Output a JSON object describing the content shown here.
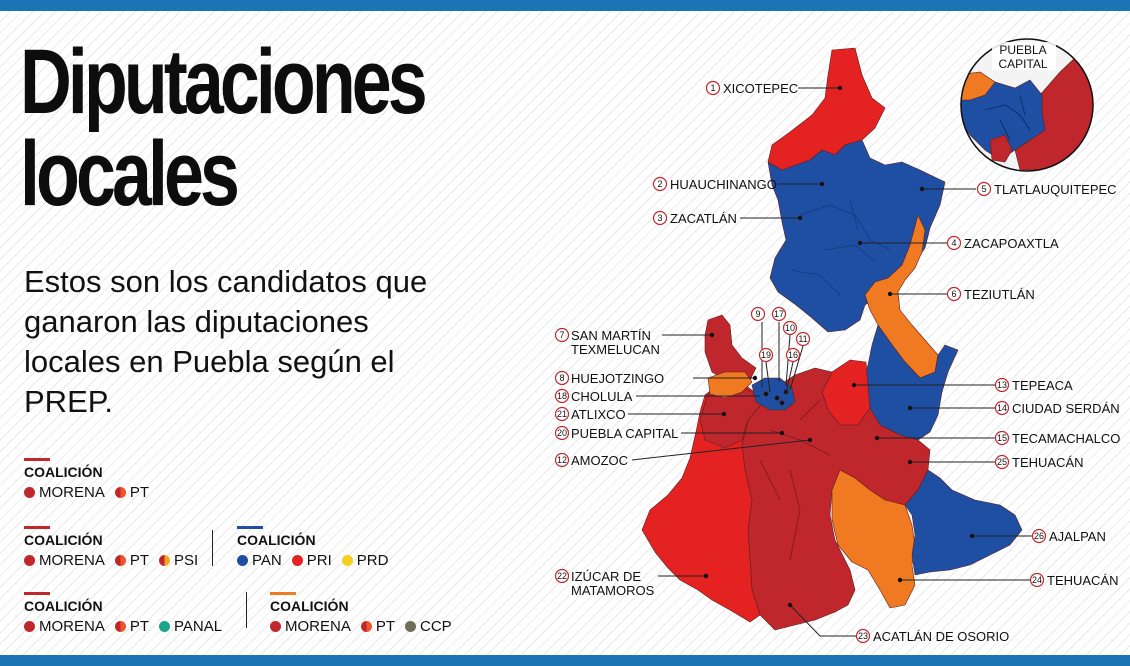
{
  "title": {
    "line1": "Diputaciones",
    "line2": "locales"
  },
  "subtitle": "Estos son los candidatos que ganaron las diputaciones locales en Puebla según el PREP.",
  "colors": {
    "morena": "#c0272d",
    "pt": "#f0542a",
    "psi": "#f5a623",
    "pan": "#1f4fa3",
    "pri": "#e52222",
    "prd": "#f5d020",
    "panal": "#1aa58e",
    "ccp": "#6e6e5a",
    "orange": "#f07a22",
    "accent_blue": "#1c74b4"
  },
  "legend": [
    {
      "id": "l1",
      "head": "COALICIÓN",
      "items": [
        "MORENA",
        "PT"
      ]
    },
    {
      "id": "l2",
      "head": "COALICIÓN",
      "items": [
        "MORENA",
        "PT",
        "PSI"
      ]
    },
    {
      "id": "l3",
      "head": "COALICIÓN",
      "items": [
        "PAN",
        "PRI",
        "PRD"
      ]
    },
    {
      "id": "l4",
      "head": "COALICIÓN",
      "items": [
        "MORENA",
        "PT",
        "PANAL"
      ]
    },
    {
      "id": "l5",
      "head": "COALICIÓN",
      "items": [
        "MORENA",
        "PT",
        "CCP"
      ]
    }
  ],
  "inset": {
    "label_line1": "PUEBLA",
    "label_line2": "CAPITAL"
  },
  "districts": [
    {
      "n": "1",
      "name": "XICOTEPEC"
    },
    {
      "n": "2",
      "name": "HUAUCHINANGO"
    },
    {
      "n": "3",
      "name": "ZACATLÁN"
    },
    {
      "n": "4",
      "name": "ZACAPOAXTLA"
    },
    {
      "n": "5",
      "name": "TLATLAUQUITEPEC"
    },
    {
      "n": "6",
      "name": "TEZIUTLÁN"
    },
    {
      "n": "7",
      "name": "SAN MARTÍN",
      "name2": "TEXMELUCAN"
    },
    {
      "n": "8",
      "name": "HUEJOTZINGO"
    },
    {
      "n": "18",
      "name": "CHOLULA"
    },
    {
      "n": "21",
      "name": "ATLIXCO"
    },
    {
      "n": "20",
      "name": "PUEBLA CAPITAL"
    },
    {
      "n": "12",
      "name": "AMOZOC"
    },
    {
      "n": "22",
      "name": "IZÚCAR DE",
      "name2": "MATAMOROS"
    },
    {
      "n": "23",
      "name": "ACATLÁN DE OSORIO"
    },
    {
      "n": "13",
      "name": "TEPEACA"
    },
    {
      "n": "14",
      "name": "CIUDAD SERDÁN"
    },
    {
      "n": "15",
      "name": "TECAMACHALCO"
    },
    {
      "n": "25",
      "name": "TEHUACÁN"
    },
    {
      "n": "26",
      "name": "AJALPAN"
    },
    {
      "n": "24",
      "name": "TEHUACÁN"
    }
  ],
  "small_numbers": [
    "9",
    "17",
    "10",
    "11",
    "19",
    "16"
  ]
}
